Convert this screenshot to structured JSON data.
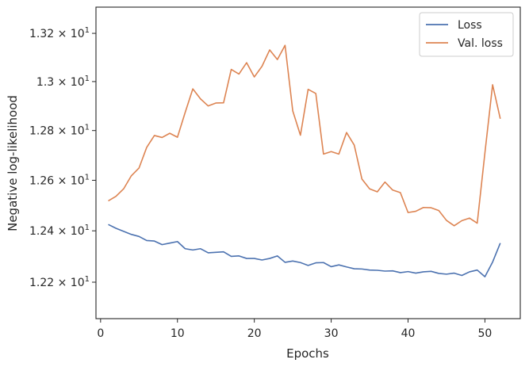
{
  "chart_data": {
    "type": "line",
    "title": "",
    "xlabel": "Epochs",
    "ylabel": "Negative log-likelihood",
    "yscale": "log",
    "xlim": [
      -0.6,
      54.6
    ],
    "ylim": [
      12.06,
      13.31
    ],
    "grid": false,
    "legend_position": "top-right",
    "x_ticks": [
      0,
      10,
      20,
      30,
      40,
      50
    ],
    "x_tick_labels": [
      "0",
      "10",
      "20",
      "30",
      "40",
      "50"
    ],
    "y_ticks": [
      12.2,
      12.4,
      12.6,
      12.8,
      13.0,
      13.2
    ],
    "y_tick_labels": [
      {
        "mant": "1.22",
        "exp": "1"
      },
      {
        "mant": "1.24",
        "exp": "1"
      },
      {
        "mant": "1.26",
        "exp": "1"
      },
      {
        "mant": "1.28",
        "exp": "1"
      },
      {
        "mant": "1.3",
        "exp": "1"
      },
      {
        "mant": "1.32",
        "exp": "1"
      }
    ],
    "x": [
      1,
      2,
      3,
      4,
      5,
      6,
      7,
      8,
      9,
      10,
      11,
      12,
      13,
      14,
      15,
      16,
      17,
      18,
      19,
      20,
      21,
      22,
      23,
      24,
      25,
      26,
      27,
      28,
      29,
      30,
      31,
      32,
      33,
      34,
      35,
      36,
      37,
      38,
      39,
      40,
      41,
      42,
      43,
      44,
      45,
      46,
      47,
      48,
      49,
      50,
      51,
      52
    ],
    "series": [
      {
        "name": "Loss",
        "color": "#4c72b0",
        "values": [
          12.425,
          12.41,
          12.398,
          12.386,
          12.378,
          12.362,
          12.36,
          12.346,
          12.352,
          12.358,
          12.33,
          12.325,
          12.33,
          12.314,
          12.316,
          12.318,
          12.3,
          12.302,
          12.292,
          12.292,
          12.286,
          12.292,
          12.302,
          12.277,
          12.282,
          12.276,
          12.265,
          12.275,
          12.276,
          12.26,
          12.267,
          12.259,
          12.252,
          12.251,
          12.247,
          12.246,
          12.243,
          12.244,
          12.237,
          12.241,
          12.235,
          12.24,
          12.242,
          12.234,
          12.231,
          12.235,
          12.226,
          12.24,
          12.247,
          12.221,
          12.278,
          12.352
        ]
      },
      {
        "name": "Val. loss",
        "color": "#dd8452",
        "values": [
          12.518,
          12.536,
          12.566,
          12.618,
          12.649,
          12.732,
          12.78,
          12.772,
          12.789,
          12.773,
          12.873,
          12.97,
          12.929,
          12.9,
          12.912,
          12.913,
          13.05,
          13.031,
          13.078,
          13.019,
          13.063,
          13.131,
          13.091,
          13.15,
          12.88,
          12.781,
          12.968,
          12.951,
          12.705,
          12.715,
          12.705,
          12.792,
          12.741,
          12.605,
          12.566,
          12.554,
          12.593,
          12.561,
          12.551,
          12.472,
          12.477,
          12.492,
          12.491,
          12.48,
          12.441,
          12.42,
          12.44,
          12.45,
          12.43,
          12.71,
          12.987,
          12.848
        ]
      }
    ]
  }
}
